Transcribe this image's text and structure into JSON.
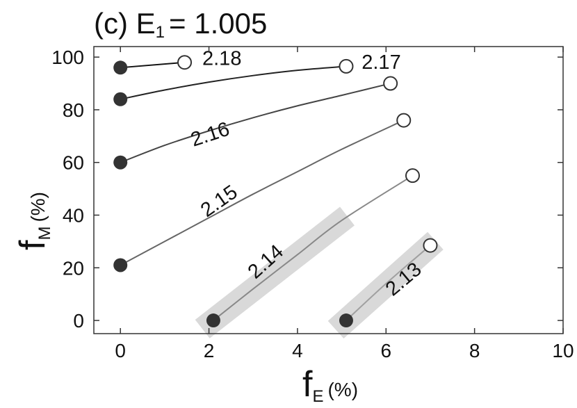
{
  "chart_data": {
    "type": "line",
    "title_prefix": "(c) E",
    "title_sub": "1",
    "title_suffix": "= 1.005",
    "xlabel": "f",
    "xlabel_sub": "E",
    "xlabel_unit": "(%)",
    "ylabel": "f",
    "ylabel_sub": "M",
    "ylabel_unit": "(%)",
    "xlim": [
      -0.6,
      10
    ],
    "ylim": [
      -5,
      104
    ],
    "xticks": [
      0,
      2,
      4,
      6,
      8,
      10
    ],
    "yticks": [
      0,
      20,
      40,
      60,
      80,
      100
    ],
    "colors": {
      "filled_marker": "#333333",
      "open_marker": "#333333",
      "highlight_band": "#d9d9d9"
    },
    "series": [
      {
        "name": "2.18",
        "x": [
          0,
          1.45
        ],
        "y": [
          96,
          98
        ],
        "color": "#111111",
        "start": [
          0,
          96
        ],
        "end": [
          1.45,
          98
        ],
        "highlight": false
      },
      {
        "name": "2.17",
        "x": [
          0,
          1,
          2,
          3,
          4,
          5.1
        ],
        "y": [
          84,
          87.5,
          90.5,
          93,
          95,
          96.5
        ],
        "color": "#222222",
        "start": [
          0,
          84
        ],
        "end": [
          5.1,
          96.5
        ],
        "highlight": false
      },
      {
        "name": "2.16",
        "x": [
          0,
          1,
          2,
          3,
          4,
          5,
          6.1
        ],
        "y": [
          60,
          66.5,
          72,
          77,
          81.5,
          85.5,
          90
        ],
        "color": "#444444",
        "start": [
          0,
          60
        ],
        "end": [
          6.1,
          90
        ],
        "highlight": false
      },
      {
        "name": "2.15",
        "x": [
          0,
          1,
          2,
          3,
          4,
          5,
          6.4
        ],
        "y": [
          21,
          30,
          39,
          48,
          56.5,
          65,
          76
        ],
        "color": "#666666",
        "start": [
          0,
          21
        ],
        "end": [
          6.4,
          76
        ],
        "highlight": false
      },
      {
        "name": "2.14",
        "x": [
          2.1,
          3,
          4,
          5,
          6.6
        ],
        "y": [
          0,
          12,
          25,
          38,
          55
        ],
        "color": "#888888",
        "start": [
          2.1,
          0
        ],
        "end": [
          6.6,
          55
        ],
        "highlight": true
      },
      {
        "name": "2.13",
        "x": [
          5.1,
          6,
          7.0
        ],
        "y": [
          0,
          14,
          28.5
        ],
        "color": "#a0a0a0",
        "start": [
          5.1,
          0
        ],
        "end": [
          7.0,
          28.5
        ],
        "highlight": true
      }
    ]
  }
}
